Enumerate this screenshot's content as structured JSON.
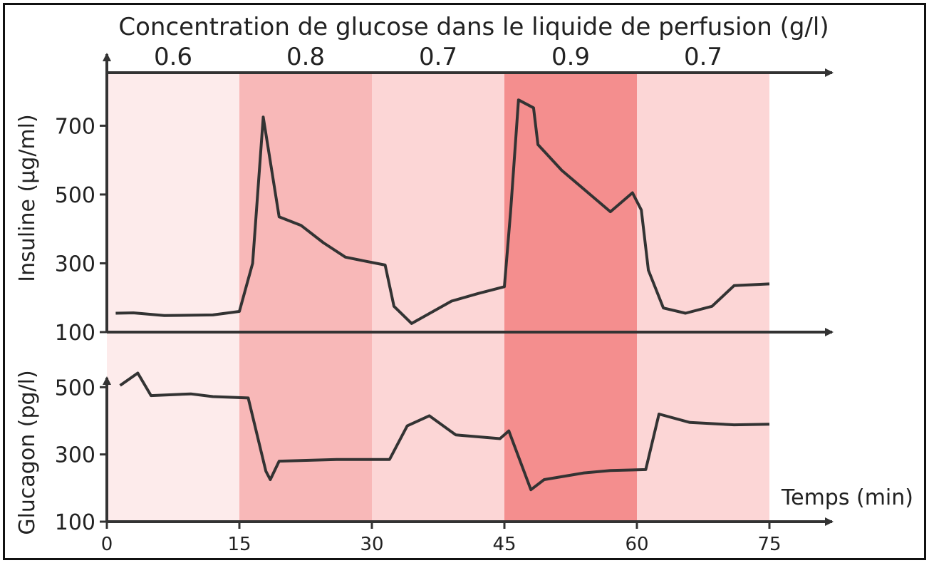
{
  "chart_data": {
    "type": "line",
    "title": "Concentration de glucose dans le liquide de perfusion (g/l)",
    "xlabel": "Temps (min)",
    "xlim": [
      0,
      75
    ],
    "x_ticks": [
      "0",
      "15",
      "30",
      "45",
      "60",
      "75"
    ],
    "glucose_bands": [
      {
        "start": 0,
        "end": 15,
        "label": "0.6",
        "color": "#fdebeb"
      },
      {
        "start": 15,
        "end": 30,
        "label": "0.8",
        "color": "#f8b8b8"
      },
      {
        "start": 30,
        "end": 45,
        "label": "0.7",
        "color": "#fcd6d6"
      },
      {
        "start": 45,
        "end": 60,
        "label": "0.9",
        "color": "#f48e8e"
      },
      {
        "start": 60,
        "end": 75,
        "label": "0.7",
        "color": "#fcd6d6"
      }
    ],
    "panels": [
      {
        "id": "insuline",
        "ylabel": "Insuline (µg/ml)",
        "ylim": [
          100,
          850
        ],
        "y_ticks": [
          "100",
          "300",
          "500",
          "700"
        ],
        "series": [
          {
            "color": "#333333",
            "points": [
              [
                1,
                155
              ],
              [
                3,
                156
              ],
              [
                6.5,
                148
              ],
              [
                12,
                150
              ],
              [
                15,
                160
              ],
              [
                16.5,
                300
              ],
              [
                17.7,
                725
              ],
              [
                19.5,
                435
              ],
              [
                22,
                410
              ],
              [
                24.5,
                360
              ],
              [
                27,
                318
              ],
              [
                29.5,
                305
              ],
              [
                31.5,
                295
              ],
              [
                32.5,
                175
              ],
              [
                34.5,
                125
              ],
              [
                39,
                190
              ],
              [
                42,
                212
              ],
              [
                45,
                232
              ],
              [
                45.7,
                450
              ],
              [
                46.6,
                775
              ],
              [
                48.3,
                752
              ],
              [
                48.8,
                645
              ],
              [
                51.5,
                570
              ],
              [
                57,
                450
              ],
              [
                59.5,
                505
              ],
              [
                60.5,
                455
              ],
              [
                61.3,
                280
              ],
              [
                63,
                170
              ],
              [
                65.5,
                155
              ],
              [
                68.5,
                175
              ],
              [
                71,
                235
              ],
              [
                75,
                240
              ]
            ]
          }
        ]
      },
      {
        "id": "glucagon",
        "ylabel": "Glucagon (pg/l)",
        "ylim": [
          100,
          560
        ],
        "y_ticks": [
          "100",
          "300",
          "500"
        ],
        "series": [
          {
            "color": "#333333",
            "points": [
              [
                1.5,
                505
              ],
              [
                3.5,
                542
              ],
              [
                5,
                475
              ],
              [
                9.5,
                480
              ],
              [
                12,
                472
              ],
              [
                16,
                468
              ],
              [
                18,
                250
              ],
              [
                18.5,
                225
              ],
              [
                19.5,
                280
              ],
              [
                26,
                285
              ],
              [
                32,
                285
              ],
              [
                34,
                385
              ],
              [
                36.5,
                415
              ],
              [
                39.5,
                358
              ],
              [
                44.5,
                347
              ],
              [
                45.5,
                370
              ],
              [
                48,
                195
              ],
              [
                49.5,
                225
              ],
              [
                54,
                245
              ],
              [
                57,
                252
              ],
              [
                61,
                255
              ],
              [
                62.5,
                420
              ],
              [
                66,
                395
              ],
              [
                71,
                388
              ],
              [
                75,
                390
              ]
            ]
          }
        ]
      }
    ]
  }
}
